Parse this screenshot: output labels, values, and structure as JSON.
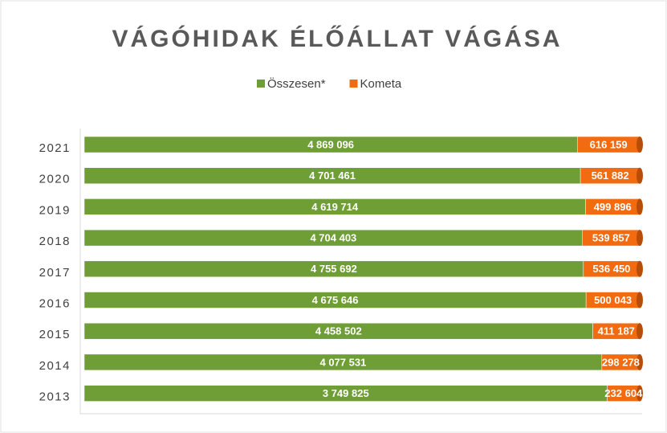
{
  "chart_data": {
    "type": "bar",
    "orientation": "horizontal",
    "stack": "percent",
    "title": "VÁGÓHIDAK ÉLŐÁLLAT VÁGÁSA",
    "categories": [
      "2021",
      "2020",
      "2019",
      "2018",
      "2017",
      "2016",
      "2015",
      "2014",
      "2013"
    ],
    "series": [
      {
        "name": "Összesen*",
        "color": "#6f9e36",
        "values": [
          4869096,
          4701461,
          4619714,
          4704403,
          4755692,
          4675646,
          4458502,
          4077531,
          3749825
        ],
        "value_labels": [
          "4 869 096",
          "4 701 461",
          "4 619 714",
          "4 704 403",
          "4 755 692",
          "4 675 646",
          "4 458 502",
          "4 077 531",
          "3 749 825"
        ]
      },
      {
        "name": "Kometa",
        "color": "#f26b10",
        "values": [
          616159,
          561882,
          499896,
          539857,
          536450,
          500043,
          411187,
          298278,
          232604
        ],
        "value_labels": [
          "616 159",
          "561 882",
          "499 896",
          "539 857",
          "536 450",
          "500 043",
          "411 187",
          "298 278",
          "232 604"
        ]
      }
    ],
    "legend": "top"
  }
}
